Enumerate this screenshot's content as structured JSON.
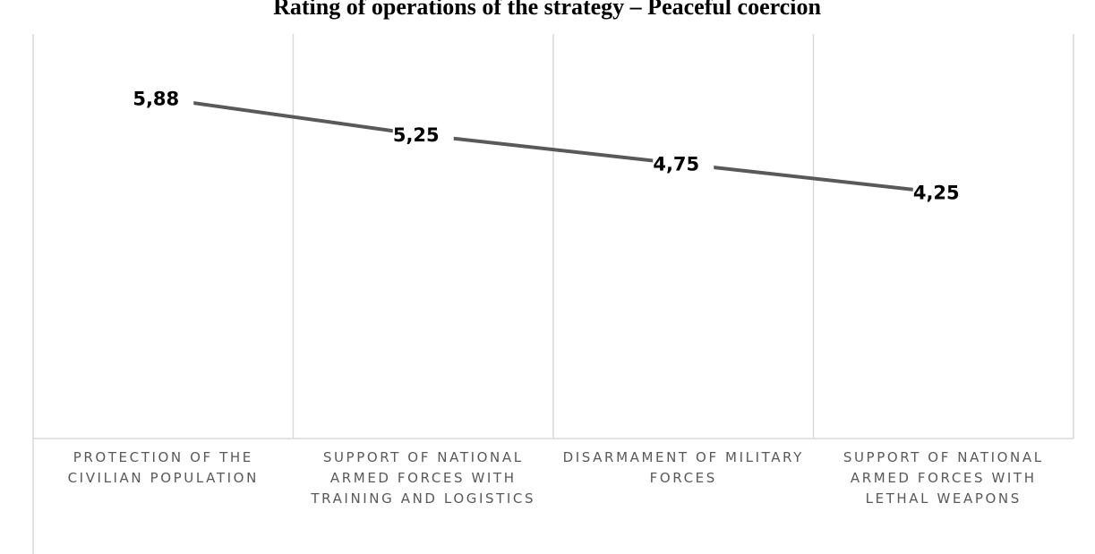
{
  "chart_data": {
    "type": "line",
    "title": "Rating of operations of the strategy – Peaceful coercion",
    "categories": [
      "PROTECTION OF THE CIVILIAN POPULATION",
      "SUPPORT OF NATIONAL ARMED FORCES WITH TRAINING AND LOGISTICS",
      "DISARMAMENT OF MILITARY FORCES",
      "SUPPORT OF NATIONAL ARMED FORCES WITH LETHAL WEAPONS"
    ],
    "series": [
      {
        "color": "#595959",
        "values": [
          5.88,
          5.25,
          4.75,
          4.25
        ],
        "value_labels": [
          "5,88",
          "5,25",
          "4,75",
          "4,25"
        ]
      }
    ],
    "ylim": [
      0,
      7
    ]
  }
}
